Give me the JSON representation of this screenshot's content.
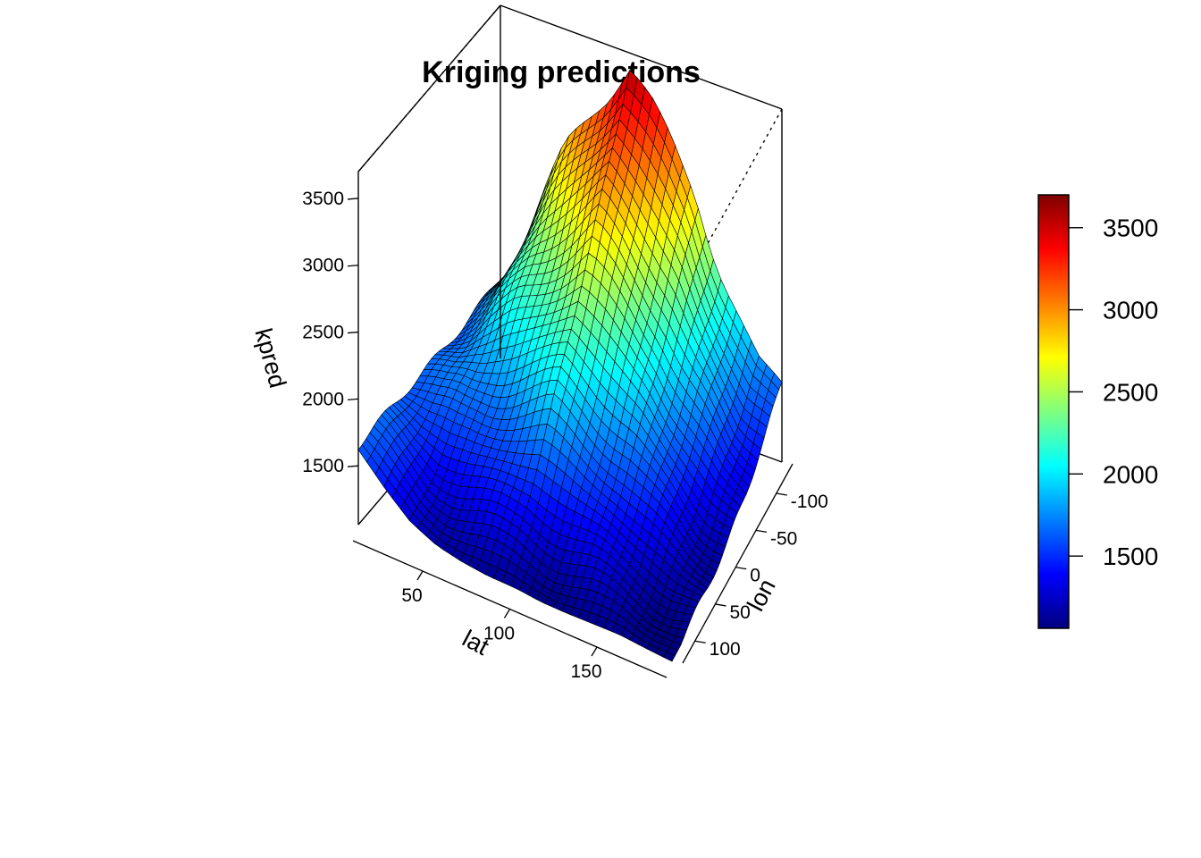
{
  "chart_data": {
    "type": "surface3d",
    "title": "Kriging predictions",
    "xlabel": "lat",
    "ylabel": "lon",
    "zlabel": "kpred",
    "x_ticks": [
      50,
      100,
      150
    ],
    "y_ticks": [
      -100,
      -50,
      0,
      50,
      100
    ],
    "z_ticks": [
      1500,
      2000,
      2500,
      3000,
      3500
    ],
    "colorbar": {
      "ticks": [
        1500,
        2000,
        2500,
        3000,
        3500
      ],
      "range": [
        1060,
        3700
      ],
      "palette": [
        "#00007f",
        "#0000ff",
        "#007fff",
        "#00ffff",
        "#7fff7f",
        "#ffff00",
        "#ff7f00",
        "#ff0000",
        "#7f0000"
      ]
    },
    "zlim": [
      1060,
      3700
    ],
    "grid_resolution": [
      38,
      38
    ],
    "surface_profile": {
      "far_edge_heights": [
        1680,
        1980,
        2420,
        2820,
        3100,
        3380,
        3700,
        3520,
        3300,
        3050,
        2560,
        2150,
        1700,
        1560
      ],
      "near_edge_heights": [
        1620,
        1420,
        1250,
        1160,
        1120,
        1100,
        1100,
        1080,
        1080,
        1090,
        1100,
        1080,
        1060
      ],
      "right_edge_heights": [
        1740,
        1520,
        1300,
        1180,
        1120,
        1080,
        1060
      ]
    }
  }
}
